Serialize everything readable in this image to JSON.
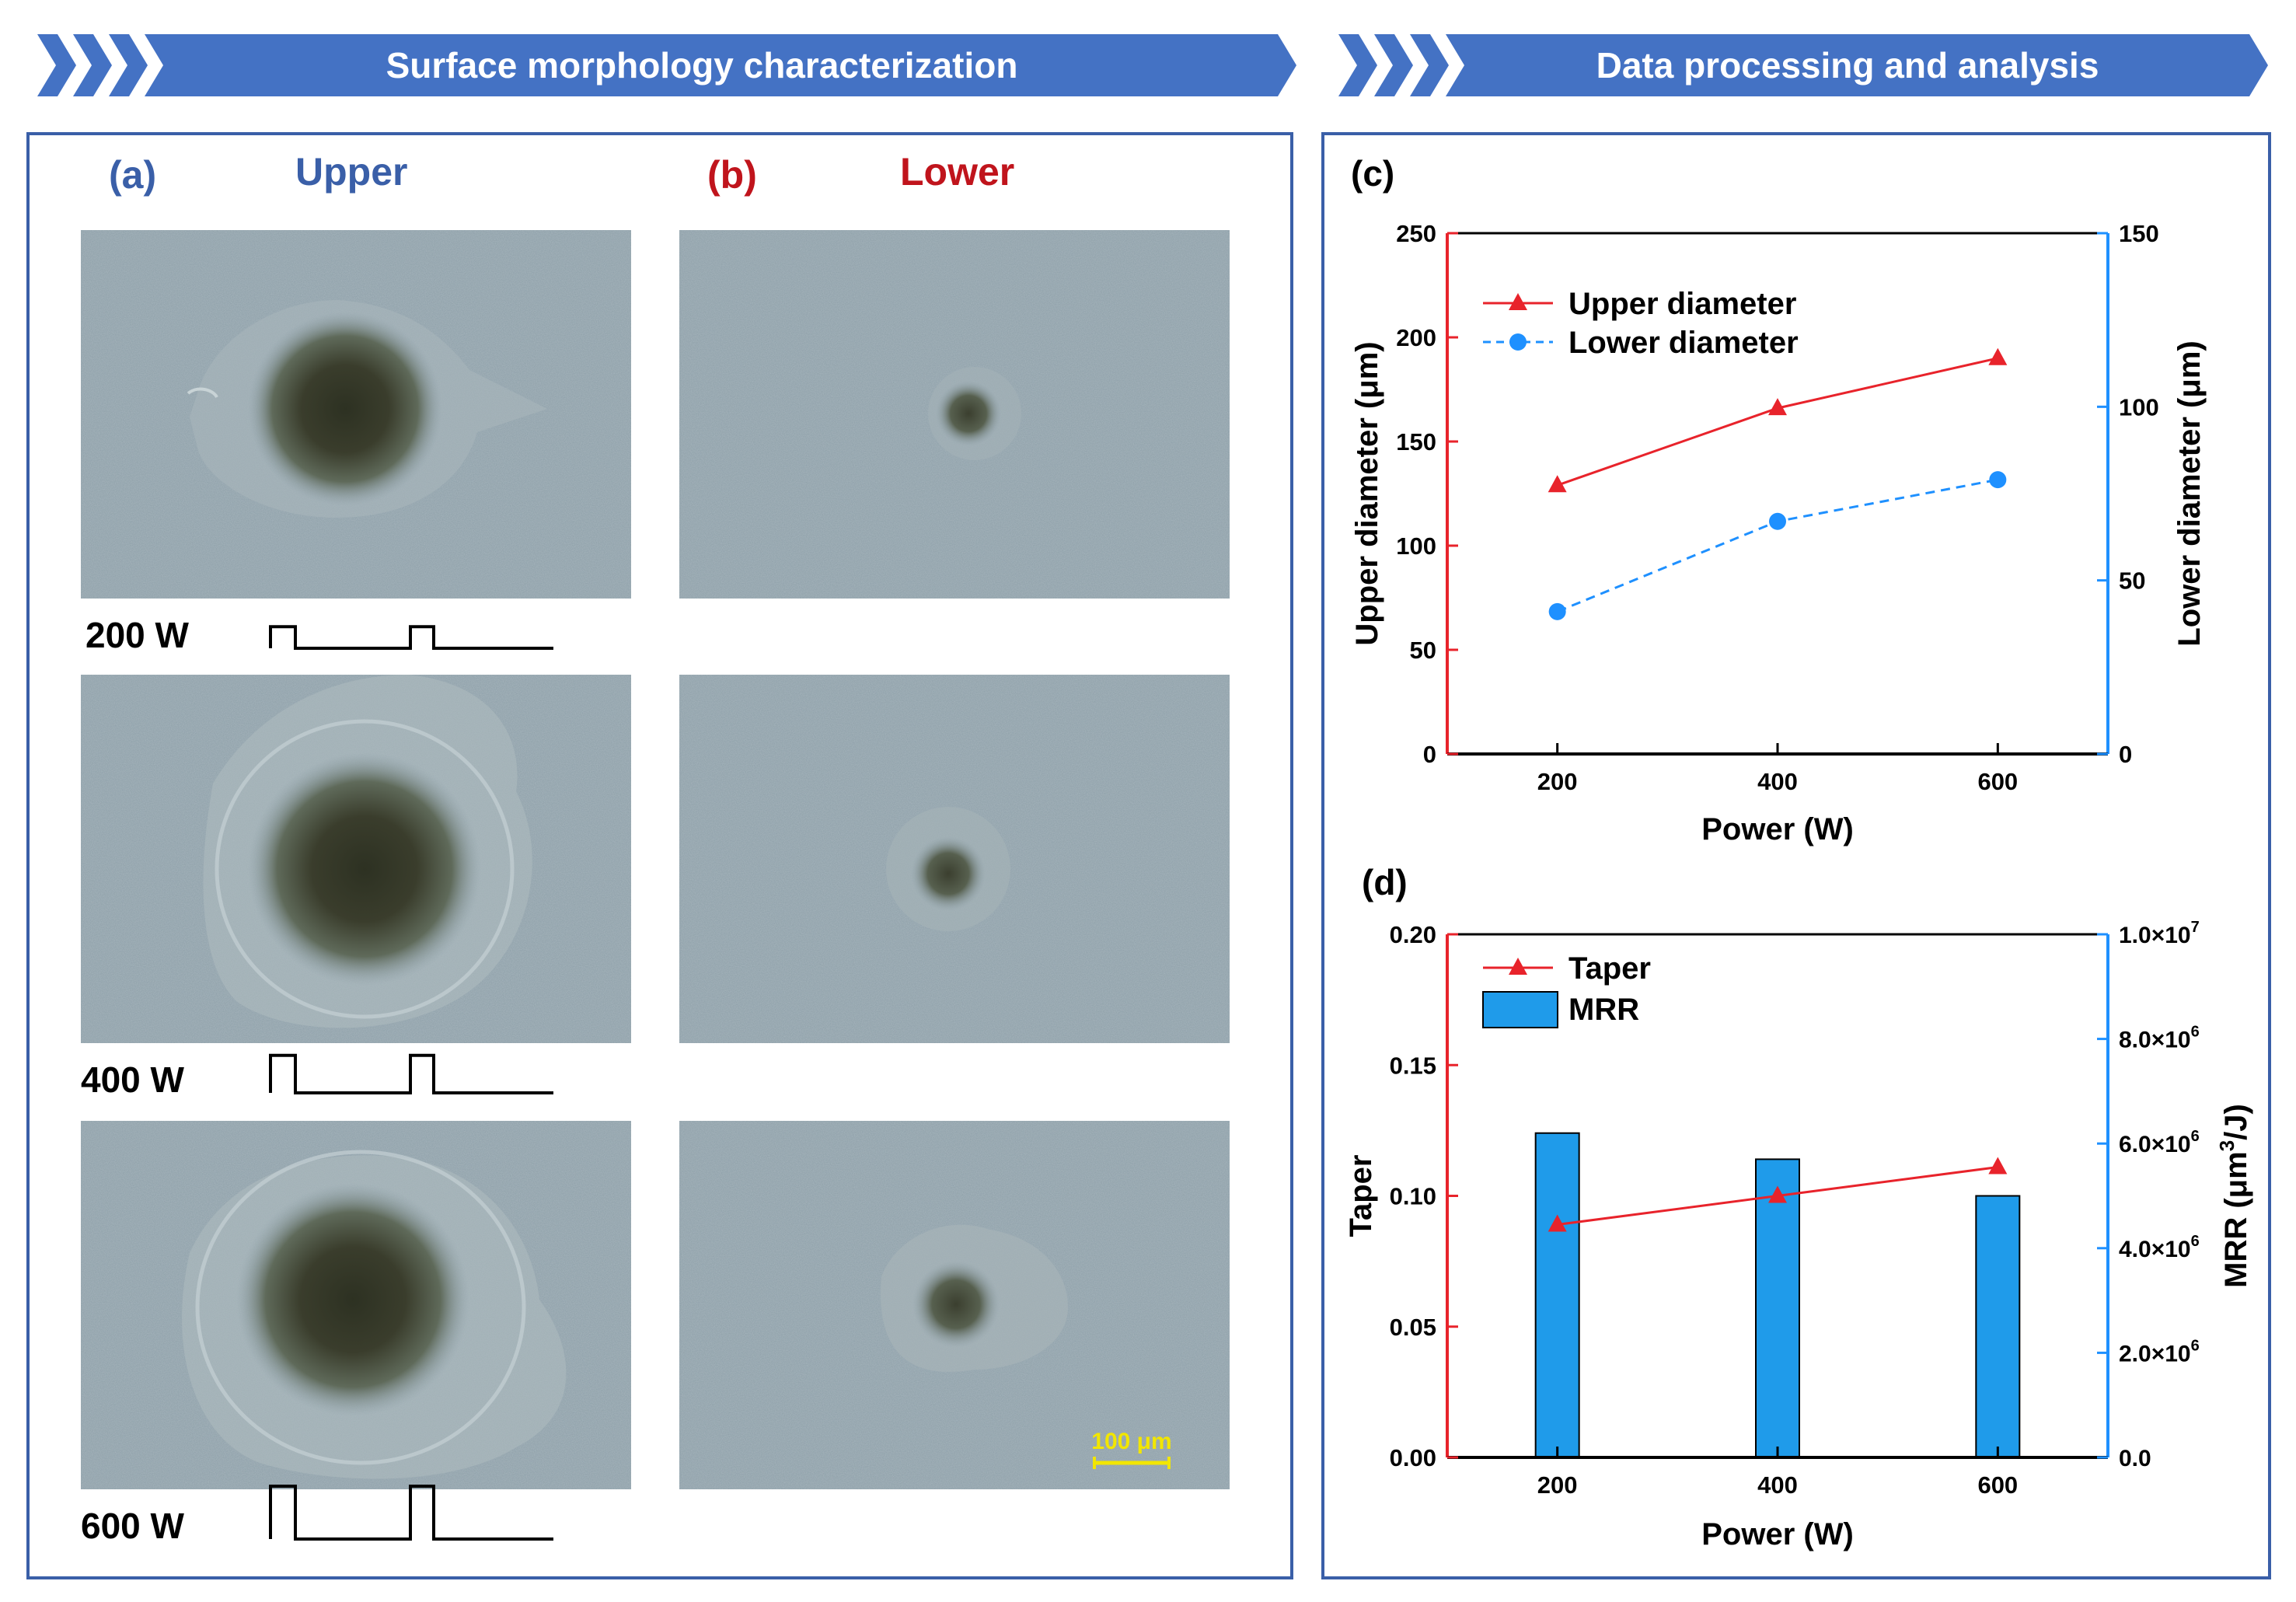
{
  "banners": {
    "left": "Surface morphology characterization",
    "right": "Data processing and analysis"
  },
  "panels": {
    "a": {
      "label": "(a)",
      "title": "Upper"
    },
    "b": {
      "label": "(b)",
      "title": "Lower"
    },
    "c": {
      "label": "(c)"
    },
    "d": {
      "label": "(d)"
    }
  },
  "rows": [
    {
      "power": "200 W",
      "pulse_level": 0.33
    },
    {
      "power": "400 W",
      "pulse_level": 0.67
    },
    {
      "power": "600 W",
      "pulse_level": 1.0
    }
  ],
  "scale_bar": "100 μm",
  "colors": {
    "banner": "#4472c4",
    "frame": "#3a5fa8",
    "red": "#e8232b",
    "blue": "#1e90ff",
    "bar": "#1f9bea",
    "sample_bg": "#8c9ea7"
  },
  "chart_data": [
    {
      "type": "line",
      "panel": "c",
      "xlabel": "Power (W)",
      "ylabel": "Upper diameter (μm)",
      "y2label": "Lower diameter (μm)",
      "x": [
        200,
        400,
        600
      ],
      "xticks": [
        "200",
        "400",
        "600"
      ],
      "xlim": [
        100,
        700
      ],
      "ylim": [
        0,
        250
      ],
      "yticks": [
        "0",
        "50",
        "100",
        "150",
        "200",
        "250"
      ],
      "y2lim": [
        0,
        150
      ],
      "y2ticks": [
        "0",
        "50",
        "100",
        "150"
      ],
      "series": [
        {
          "name": "Upper diameter",
          "axis": "left",
          "values": [
            129,
            166,
            190
          ],
          "marker": "triangle",
          "style": "solid"
        },
        {
          "name": "Lower diameter",
          "axis": "right",
          "values": [
            41,
            67,
            79
          ],
          "marker": "circle",
          "style": "dashed"
        }
      ],
      "legend": "top-left"
    },
    {
      "type": "bar+line",
      "panel": "d",
      "xlabel": "Power (W)",
      "ylabel": "Taper",
      "y2label_main": "MRR (μm",
      "y2label_sup": "3",
      "y2label_end": "/J)",
      "categories": [
        "200",
        "400",
        "600"
      ],
      "x": [
        200,
        400,
        600
      ],
      "xlim": [
        100,
        700
      ],
      "ylim": [
        0,
        0.2
      ],
      "yticks": [
        "0.00",
        "0.05",
        "0.10",
        "0.15",
        "0.20"
      ],
      "y2lim": [
        0,
        10000000
      ],
      "y2ticks": [
        {
          "base": "0.0",
          "sup": ""
        },
        {
          "base": "2.0×10",
          "sup": "6"
        },
        {
          "base": "4.0×10",
          "sup": "6"
        },
        {
          "base": "6.0×10",
          "sup": "6"
        },
        {
          "base": "8.0×10",
          "sup": "6"
        },
        {
          "base": "1.0×10",
          "sup": "7"
        }
      ],
      "series": [
        {
          "name": "Taper",
          "axis": "left",
          "kind": "line",
          "values": [
            0.089,
            0.1,
            0.111
          ]
        },
        {
          "name": "MRR",
          "axis": "right",
          "kind": "bar",
          "values": [
            6200000,
            5700000,
            5000000
          ]
        }
      ],
      "legend": "top-left"
    }
  ]
}
